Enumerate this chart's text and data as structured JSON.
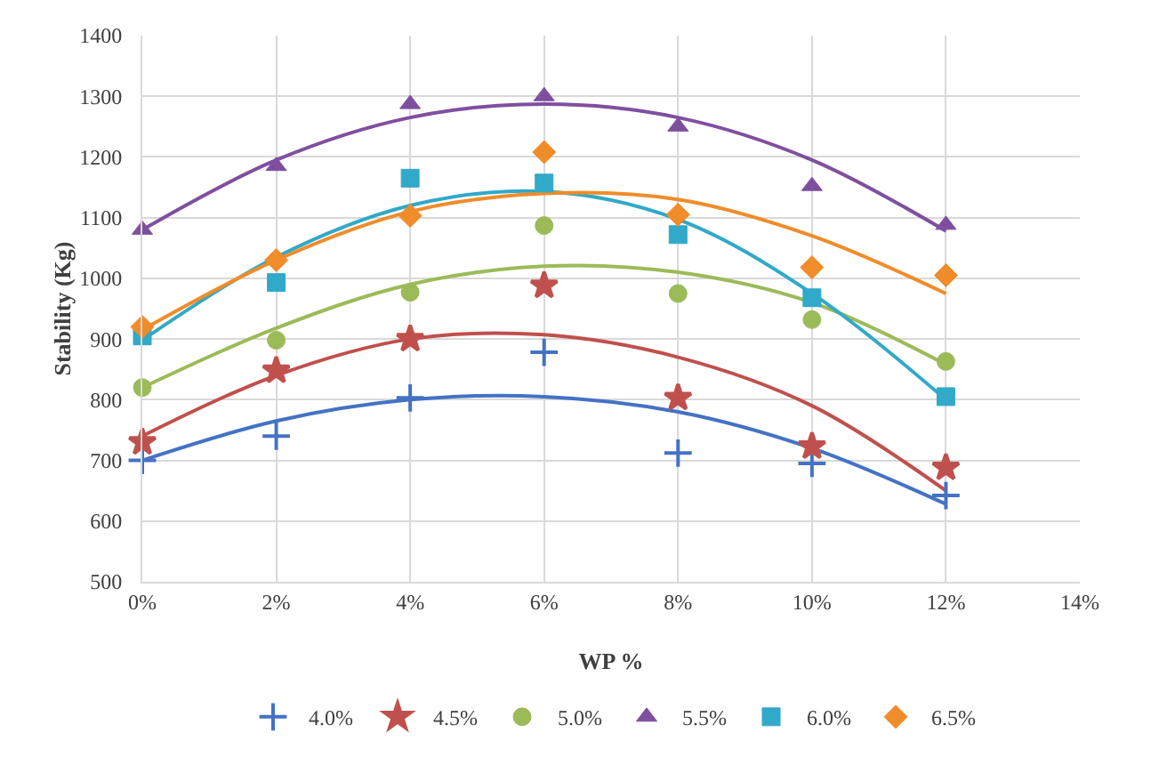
{
  "chart_data": {
    "type": "scatter",
    "xlabel": "WP %",
    "ylabel": "Stability (Kg)",
    "xlim": [
      0,
      14
    ],
    "xticks": [
      {
        "value": 0,
        "label": "0%"
      },
      {
        "value": 2,
        "label": "2%"
      },
      {
        "value": 4,
        "label": "4%"
      },
      {
        "value": 6,
        "label": "6%"
      },
      {
        "value": 8,
        "label": "8%"
      },
      {
        "value": 10,
        "label": "10%"
      },
      {
        "value": 12,
        "label": "12%"
      },
      {
        "value": 14,
        "label": "14%"
      }
    ],
    "ylim": [
      500,
      1400
    ],
    "yticks": [
      500,
      600,
      700,
      800,
      900,
      1000,
      1100,
      1200,
      1300,
      1400
    ],
    "grid": true,
    "legend": "bottom",
    "x": [
      0,
      2,
      4,
      6,
      8,
      10,
      12
    ],
    "series": [
      {
        "name": "4.0%",
        "color": "#4472c4",
        "marker": "cross",
        "values": [
          700,
          740,
          803,
          878,
          712,
          695,
          642
        ]
      },
      {
        "name": "4.5%",
        "color": "#c0504d",
        "marker": "star",
        "values": [
          730,
          848,
          900,
          988,
          803,
          723,
          688
        ]
      },
      {
        "name": "5.0%",
        "color": "#9bbb59",
        "marker": "circle",
        "values": [
          820,
          898,
          977,
          1087,
          975,
          932,
          863
        ]
      },
      {
        "name": "5.5%",
        "color": "#7f4f9f",
        "marker": "triangle",
        "values": [
          1080,
          1185,
          1287,
          1300,
          1250,
          1152,
          1088
        ]
      },
      {
        "name": "6.0%",
        "color": "#31a9c8",
        "marker": "square",
        "values": [
          905,
          993,
          1165,
          1157,
          1072,
          968,
          805
        ]
      },
      {
        "name": "6.5%",
        "color": "#f08c2a",
        "marker": "diamond",
        "values": [
          920,
          1030,
          1103,
          1208,
          1105,
          1018,
          1005
        ]
      },
      {
        "type": "line",
        "color": "#4472c4",
        "marker": "none",
        "values": [
          700,
          765,
          800,
          805,
          780,
          720,
          628
        ]
      },
      {
        "type": "line",
        "color": "#c0504d",
        "marker": "none",
        "values": [
          740,
          840,
          900,
          907,
          870,
          790,
          650
        ]
      },
      {
        "type": "line",
        "color": "#9bbb59",
        "marker": "none",
        "values": [
          820,
          918,
          990,
          1020,
          1010,
          960,
          858
        ]
      },
      {
        "type": "line",
        "color": "#7f4f9f",
        "marker": "none",
        "values": [
          1080,
          1195,
          1265,
          1287,
          1265,
          1195,
          1078
        ]
      },
      {
        "type": "line",
        "color": "#31a9c8",
        "marker": "none",
        "values": [
          898,
          1035,
          1120,
          1143,
          1097,
          975,
          800
        ]
      },
      {
        "type": "line",
        "color": "#f08c2a",
        "marker": "none",
        "values": [
          915,
          1030,
          1110,
          1140,
          1130,
          1070,
          975
        ]
      }
    ]
  }
}
